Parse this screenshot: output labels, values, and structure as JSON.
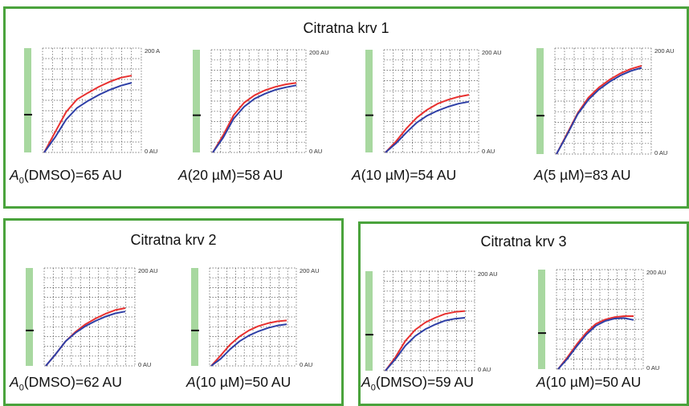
{
  "colors": {
    "panel_border": "#4aa33c",
    "red_curve": "#e8302f",
    "blue_curve": "#2e3fa6",
    "side_bar": "#a8d8a0",
    "grid": "#555555"
  },
  "panels": [
    {
      "title": "Citratna krv 1",
      "charts": [
        {
          "label_prefix": "A",
          "label_sub": "0",
          "label_rest": "(DMSO)=65 AU",
          "top_tick": "200 A",
          "bottom_tick": "0 AU"
        },
        {
          "label_prefix": "A",
          "label_sub": "",
          "label_rest": "(20 µM)=58 AU",
          "top_tick": "200 AU",
          "bottom_tick": "0 AU"
        },
        {
          "label_prefix": "A",
          "label_sub": "",
          "label_rest": "(10 µM)=54 AU",
          "top_tick": "200 AU",
          "bottom_tick": "0 AU"
        },
        {
          "label_prefix": "A",
          "label_sub": "",
          "label_rest": "(5 µM)=83 AU",
          "top_tick": "200 AU",
          "bottom_tick": "0 AU"
        }
      ]
    },
    {
      "title": "Citratna krv 2",
      "charts": [
        {
          "label_prefix": "A",
          "label_sub": "0",
          "label_rest": "(DMSO)=62 AU",
          "top_tick": "200 AU",
          "bottom_tick": "0 AU"
        },
        {
          "label_prefix": "A",
          "label_sub": "",
          "label_rest": "(10 µM)=50 AU",
          "top_tick": "200 AU",
          "bottom_tick": "0 AU"
        }
      ]
    },
    {
      "title": "Citratna krv 3",
      "charts": [
        {
          "label_prefix": "A",
          "label_sub": "0",
          "label_rest": "(DMSO)=59 AU",
          "top_tick": "200 AU",
          "bottom_tick": "0 AU"
        },
        {
          "label_prefix": "A",
          "label_sub": "",
          "label_rest": "(10 µM)=50 AU",
          "top_tick": "200 AU",
          "bottom_tick": "0 AU"
        }
      ]
    }
  ],
  "chart_data": [
    {
      "type": "line",
      "title": "",
      "ylim": [
        0,
        200
      ],
      "series": [
        {
          "x": [
            0,
            1,
            2,
            3,
            4,
            5,
            6,
            7,
            8
          ],
          "values": [
            0,
            40,
            80,
            105,
            118,
            130,
            140,
            148,
            152
          ]
        },
        {
          "x": [
            0,
            1,
            2,
            3,
            4,
            5,
            6,
            7,
            8
          ],
          "values": [
            0,
            30,
            65,
            88,
            102,
            114,
            124,
            132,
            138
          ]
        }
      ]
    },
    {
      "type": "line",
      "title": "",
      "ylim": [
        0,
        200
      ],
      "series": [
        {
          "x": [
            0,
            1,
            2,
            3,
            4,
            5,
            6,
            7,
            8
          ],
          "values": [
            0,
            35,
            75,
            100,
            115,
            125,
            132,
            137,
            140
          ]
        },
        {
          "x": [
            0,
            1,
            2,
            3,
            4,
            5,
            6,
            7,
            8
          ],
          "values": [
            0,
            30,
            68,
            92,
            108,
            118,
            126,
            131,
            135
          ]
        }
      ]
    },
    {
      "type": "line",
      "title": "",
      "ylim": [
        0,
        200
      ],
      "series": [
        {
          "x": [
            0,
            1,
            2,
            3,
            4,
            5,
            6,
            7,
            8
          ],
          "values": [
            0,
            22,
            48,
            70,
            86,
            98,
            106,
            112,
            116
          ]
        },
        {
          "x": [
            0,
            1,
            2,
            3,
            4,
            5,
            6,
            7,
            8
          ],
          "values": [
            0,
            18,
            40,
            60,
            74,
            84,
            92,
            98,
            102
          ]
        }
      ]
    },
    {
      "type": "line",
      "title": "",
      "ylim": [
        0,
        200
      ],
      "series": [
        {
          "x": [
            0,
            1,
            2,
            3,
            4,
            5,
            6,
            7,
            8
          ],
          "values": [
            0,
            40,
            80,
            110,
            130,
            145,
            157,
            166,
            172
          ]
        },
        {
          "x": [
            0,
            1,
            2,
            3,
            4,
            5,
            6,
            7,
            8
          ],
          "values": [
            0,
            38,
            78,
            106,
            126,
            141,
            153,
            162,
            168
          ]
        }
      ]
    },
    {
      "type": "line",
      "title": "",
      "ylim": [
        0,
        200
      ],
      "series": [
        {
          "x": [
            0,
            1,
            2,
            3,
            4,
            5,
            6,
            7,
            8
          ],
          "values": [
            0,
            25,
            52,
            72,
            88,
            100,
            110,
            118,
            122
          ]
        },
        {
          "x": [
            0,
            1,
            2,
            3,
            4,
            5,
            6,
            7,
            8
          ],
          "values": [
            0,
            25,
            52,
            70,
            84,
            95,
            104,
            111,
            115
          ]
        }
      ]
    },
    {
      "type": "line",
      "title": "",
      "ylim": [
        0,
        200
      ],
      "series": [
        {
          "x": [
            0,
            1,
            2,
            3,
            4,
            5,
            6,
            7,
            8
          ],
          "values": [
            0,
            22,
            45,
            62,
            75,
            84,
            90,
            94,
            96
          ]
        },
        {
          "x": [
            0,
            1,
            2,
            3,
            4,
            5,
            6,
            7,
            8
          ],
          "values": [
            0,
            15,
            35,
            52,
            64,
            73,
            80,
            85,
            88
          ]
        }
      ]
    },
    {
      "type": "line",
      "title": "",
      "ylim": [
        0,
        200
      ],
      "series": [
        {
          "x": [
            0,
            1,
            2,
            3,
            4,
            5,
            6,
            7,
            8
          ],
          "values": [
            0,
            28,
            62,
            85,
            100,
            110,
            118,
            122,
            124
          ]
        },
        {
          "x": [
            0,
            1,
            2,
            3,
            4,
            5,
            6,
            7,
            8
          ],
          "values": [
            0,
            24,
            52,
            72,
            86,
            96,
            104,
            108,
            110
          ]
        }
      ]
    },
    {
      "type": "line",
      "title": "",
      "ylim": [
        0,
        200
      ],
      "series": [
        {
          "x": [
            0,
            1,
            2,
            3,
            4,
            5,
            6,
            7,
            8
          ],
          "values": [
            0,
            25,
            52,
            76,
            94,
            103,
            108,
            110,
            110
          ]
        },
        {
          "x": [
            0,
            1,
            2,
            3,
            4,
            5,
            6,
            7,
            8
          ],
          "values": [
            0,
            22,
            48,
            72,
            90,
            100,
            105,
            106,
            102
          ]
        }
      ]
    }
  ]
}
